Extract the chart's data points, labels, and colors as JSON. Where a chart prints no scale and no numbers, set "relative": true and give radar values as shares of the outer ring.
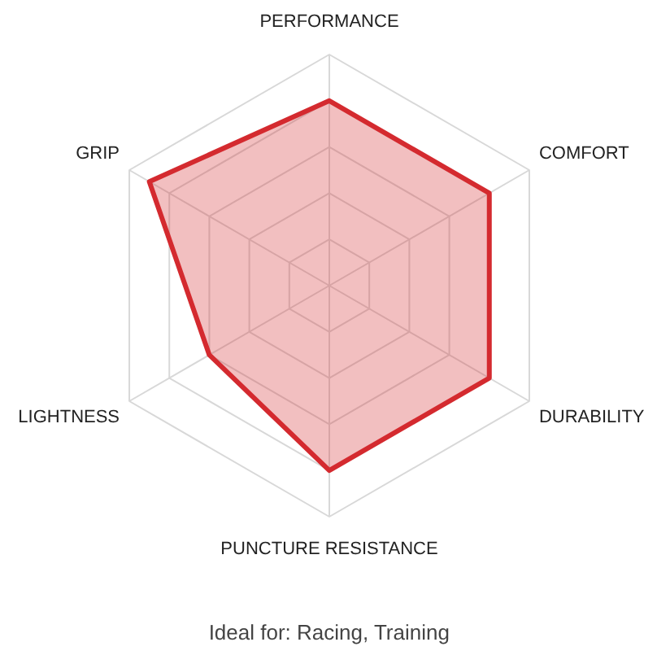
{
  "chart_data": {
    "type": "radar",
    "relative": true,
    "categories": [
      "PERFORMANCE",
      "COMFORT",
      "DURABILITY",
      "PUNCTURE RESISTANCE",
      "LIGHTNESS",
      "GRIP"
    ],
    "series": [
      {
        "color": "#d42a2f",
        "values": [
          0.8,
          0.8,
          0.8,
          0.8,
          0.6,
          0.9
        ]
      }
    ],
    "annotations": [
      "Ideal for: Racing, Training"
    ]
  }
}
